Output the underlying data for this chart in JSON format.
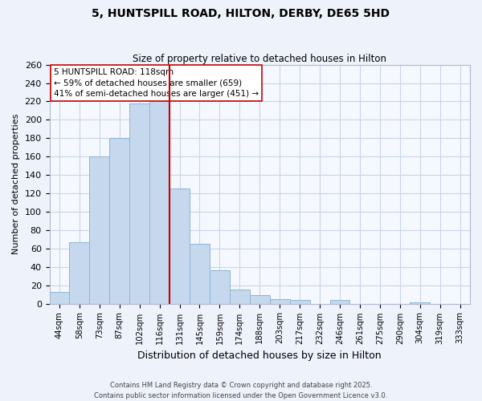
{
  "title": "5, HUNTSPILL ROAD, HILTON, DERBY, DE65 5HD",
  "subtitle": "Size of property relative to detached houses in Hilton",
  "xlabel": "Distribution of detached houses by size in Hilton",
  "ylabel": "Number of detached properties",
  "categories": [
    "44sqm",
    "58sqm",
    "73sqm",
    "87sqm",
    "102sqm",
    "116sqm",
    "131sqm",
    "145sqm",
    "159sqm",
    "174sqm",
    "188sqm",
    "203sqm",
    "217sqm",
    "232sqm",
    "246sqm",
    "261sqm",
    "275sqm",
    "290sqm",
    "304sqm",
    "319sqm",
    "333sqm"
  ],
  "values": [
    13,
    67,
    160,
    180,
    218,
    220,
    125,
    65,
    36,
    15,
    9,
    5,
    4,
    0,
    4,
    0,
    0,
    0,
    1,
    0,
    0
  ],
  "bar_color": "#c5d8ed",
  "bar_edge_color": "#8db4d4",
  "vline_color": "#cc0000",
  "vline_x_index": 5,
  "ylim": [
    0,
    260
  ],
  "yticks": [
    0,
    20,
    40,
    60,
    80,
    100,
    120,
    140,
    160,
    180,
    200,
    220,
    240,
    260
  ],
  "annotation_text_line1": "5 HUNTSPILL ROAD: 118sqm",
  "annotation_text_line2": "← 59% of detached houses are smaller (659)",
  "annotation_text_line3": "41% of semi-detached houses are larger (451) →",
  "footer_line1": "Contains HM Land Registry data © Crown copyright and database right 2025.",
  "footer_line2": "Contains public sector information licensed under the Open Government Licence v3.0.",
  "background_color": "#eef2fb",
  "plot_background_color": "#f5f8ff",
  "grid_color": "#c8d4e8"
}
